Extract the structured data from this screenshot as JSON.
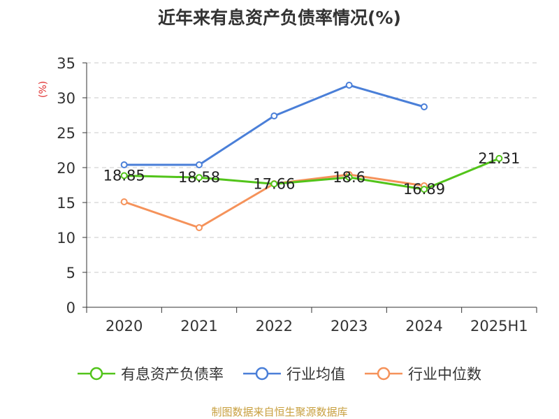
{
  "chart_data": {
    "type": "line",
    "title": "近年来有息资产负债率情况(%)",
    "unit_label": "(%)",
    "categories": [
      "2020",
      "2021",
      "2022",
      "2023",
      "2024",
      "2025H1"
    ],
    "ylim": [
      0,
      35
    ],
    "yticks": [
      0,
      5,
      10,
      15,
      20,
      25,
      30,
      35
    ],
    "grid": true,
    "legend_position": "bottom",
    "series": [
      {
        "name": "有息资产负债率",
        "color": "#52c41a",
        "values": [
          18.85,
          18.58,
          17.66,
          18.6,
          16.89,
          21.31
        ],
        "data_labels": [
          "18.85",
          "18.58",
          "17.66",
          "18.6",
          "16.89",
          "21.31"
        ]
      },
      {
        "name": "行业均值",
        "color": "#4a7fd8",
        "values": [
          20.4,
          20.4,
          27.4,
          31.8,
          28.7,
          null
        ]
      },
      {
        "name": "行业中位数",
        "color": "#f5925a",
        "values": [
          15.1,
          11.4,
          17.7,
          19.0,
          17.4,
          null
        ]
      }
    ]
  },
  "source_note": "制图数据来自恒生聚源数据库"
}
